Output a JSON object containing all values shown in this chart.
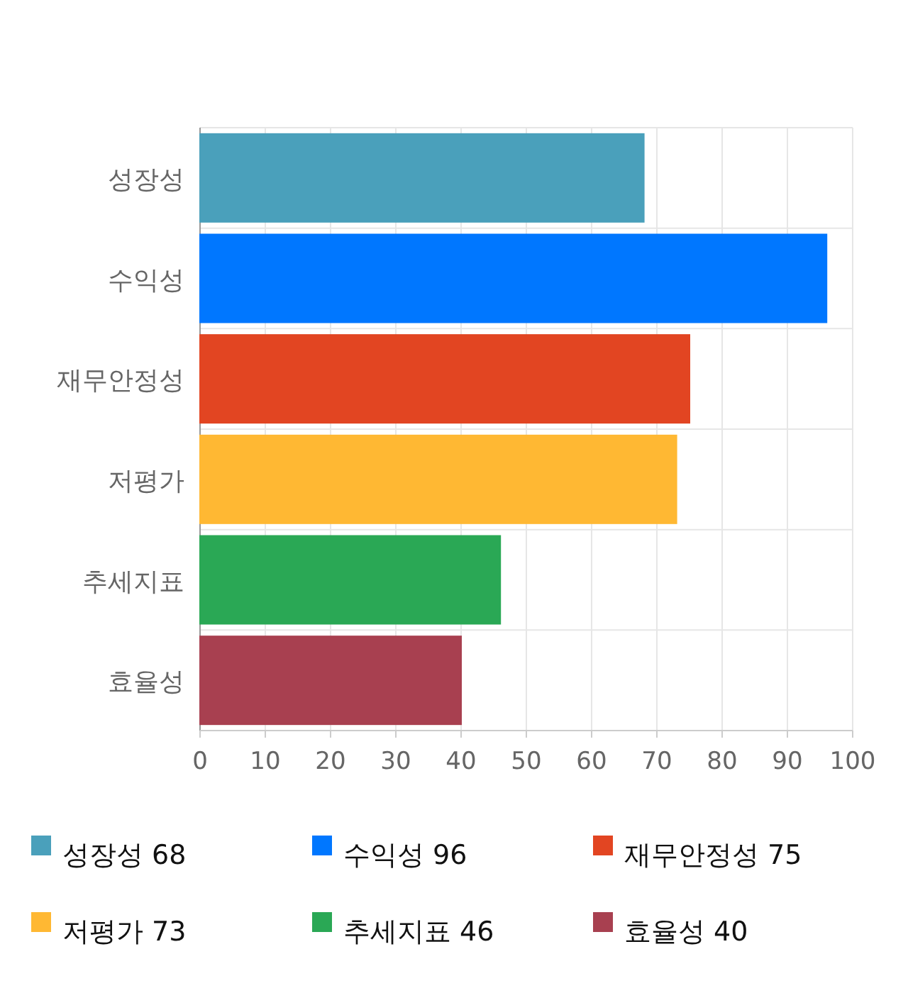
{
  "chart_data": {
    "type": "bar",
    "orientation": "horizontal",
    "categories": [
      "성장성",
      "수익성",
      "재무안정성",
      "저평가",
      "추세지표",
      "효율성"
    ],
    "series": [
      {
        "name": "성장성 68",
        "color": "#4aa0bb",
        "values": [
          68,
          null,
          null,
          null,
          null,
          null
        ]
      },
      {
        "name": "수익성 96",
        "color": "#0077ff",
        "values": [
          null,
          96,
          null,
          null,
          null,
          null
        ]
      },
      {
        "name": "재무안정성 75",
        "color": "#e24522",
        "values": [
          null,
          null,
          75,
          null,
          null,
          null
        ]
      },
      {
        "name": "저평가 73",
        "color": "#ffb833",
        "values": [
          null,
          null,
          null,
          73,
          null,
          null
        ]
      },
      {
        "name": "추세지표 46",
        "color": "#2aa855",
        "values": [
          null,
          null,
          null,
          null,
          46,
          null
        ]
      },
      {
        "name": "효율성 40",
        "color": "#a84050",
        "values": [
          null,
          null,
          null,
          null,
          null,
          40
        ]
      }
    ],
    "xlim": [
      0,
      100
    ],
    "xticks": [
      0,
      10,
      20,
      30,
      40,
      50,
      60,
      70,
      80,
      90,
      100
    ],
    "grid": true,
    "legend": "bottom"
  }
}
